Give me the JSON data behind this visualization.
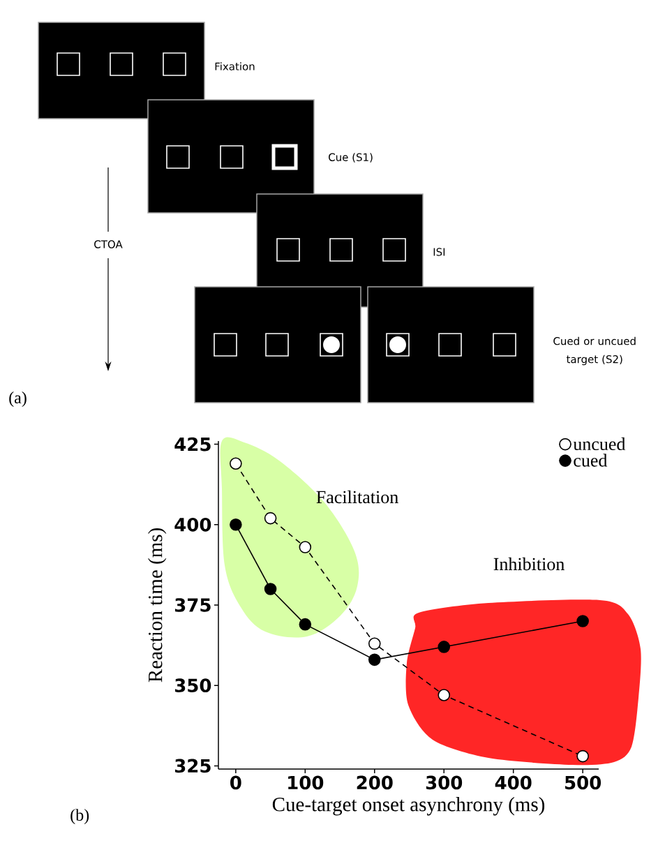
{
  "chart_data": [
    {
      "type": "other",
      "annotations": [
        "Fixation",
        "Cue (S1)",
        "ISI",
        "Cued or uncued target (S2)",
        "CTOA",
        "(a)"
      ]
    },
    {
      "type": "line",
      "xlabel": "Cue-target onset asynchrony (ms)",
      "ylabel": "Reaction time (ms)",
      "x": [
        0,
        50,
        100,
        200,
        300,
        500
      ],
      "series": [
        {
          "name": "uncued",
          "color": "#000000",
          "line_style": "dashed",
          "values": [
            419,
            402,
            393,
            363,
            347,
            328
          ]
        },
        {
          "name": "cued",
          "color": "#000000",
          "line_style": "solid",
          "values": [
            400,
            380,
            369,
            358,
            362,
            370
          ]
        }
      ],
      "xlim": [
        -25,
        523
      ],
      "ylim": [
        324,
        426
      ],
      "xticks": [
        0,
        100,
        200,
        300,
        400,
        500
      ],
      "yticks": [
        325,
        350,
        375,
        400,
        425
      ],
      "legend": "top right",
      "marker": "circle",
      "annotations": [
        "Facilitation",
        "Inhibition",
        "(b)"
      ]
    }
  ]
}
